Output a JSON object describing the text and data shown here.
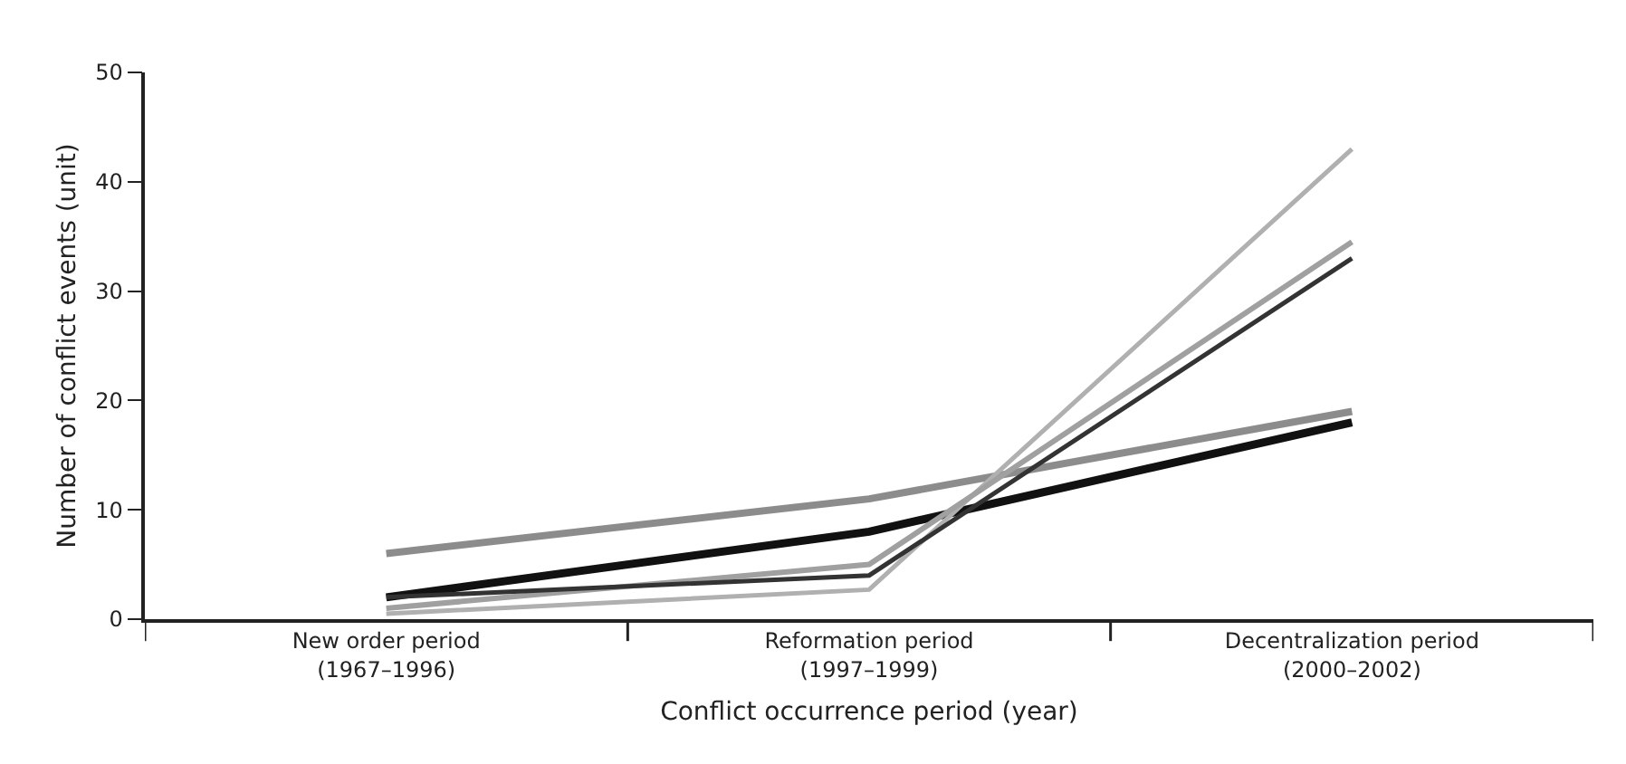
{
  "chart_data": {
    "type": "line",
    "xlabel": "Conflict occurrence period (year)",
    "ylabel": "Number of conflict events (unit)",
    "categories": [
      "New order period\n(1967–1996)",
      "Reformation period\n(1997–1999)",
      "Decentralization period\n(2000–2002)"
    ],
    "series": [
      {
        "color": "#8c8c8c",
        "values": [
          6,
          11,
          19
        ]
      },
      {
        "color": "#111111",
        "values": [
          2,
          8,
          18
        ]
      },
      {
        "color": "#b0b0b0",
        "values": [
          0.5,
          2.7,
          43
        ]
      },
      {
        "color": "#a0a0a0",
        "values": [
          1,
          5,
          34.5
        ]
      },
      {
        "color": "#333333",
        "values": [
          2,
          4,
          33
        ]
      }
    ],
    "ylim": [
      0,
      50
    ],
    "yticks": [
      0,
      10,
      20,
      30,
      40,
      50
    ],
    "grid": false,
    "marker": "none",
    "line_style": "solid"
  }
}
